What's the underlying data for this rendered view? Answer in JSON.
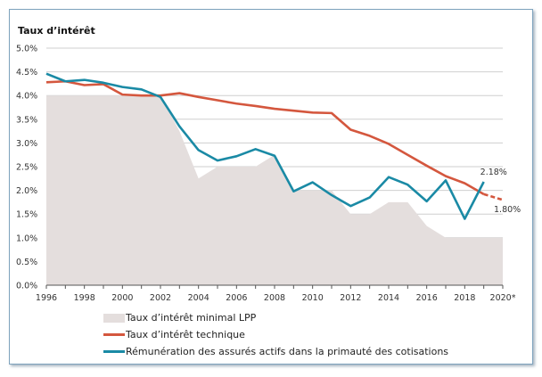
{
  "chart_data": {
    "type": "line",
    "title": "Taux d’intérêt",
    "xlabel": "",
    "ylabel": "",
    "x": [
      1996,
      1997,
      1998,
      1999,
      2000,
      2001,
      2002,
      2003,
      2004,
      2005,
      2006,
      2007,
      2008,
      2009,
      2010,
      2011,
      2012,
      2013,
      2014,
      2015,
      2016,
      2017,
      2018,
      2019,
      2020
    ],
    "x_ticks": [
      "1996",
      "1998",
      "2000",
      "2002",
      "2004",
      "2006",
      "2008",
      "2010",
      "2012",
      "2014",
      "2016",
      "2018",
      "2020*"
    ],
    "y_ticks": [
      "0.0%",
      "0.5%",
      "1.0%",
      "1.5%",
      "2.0%",
      "2.5%",
      "3.0%",
      "3.5%",
      "4.0%",
      "4.5%",
      "5.0%"
    ],
    "xlim": [
      1996,
      2020
    ],
    "ylim": [
      0,
      5
    ],
    "grid": true,
    "legend_position": "bottom",
    "series": [
      {
        "name": "Taux d’intérêt minimal LPP",
        "kind": "area",
        "color": "#e4dedd",
        "values": [
          4.0,
          4.0,
          4.0,
          4.0,
          4.0,
          4.0,
          4.0,
          3.25,
          2.25,
          2.5,
          2.5,
          2.5,
          2.75,
          2.0,
          2.0,
          2.0,
          1.5,
          1.5,
          1.75,
          1.75,
          1.25,
          1.0,
          1.0,
          1.0,
          1.0
        ]
      },
      {
        "name": "Taux d’intérêt technique",
        "kind": "line",
        "color": "#d4573e",
        "dashed_from": 2019,
        "values": [
          4.28,
          4.3,
          4.22,
          4.24,
          4.02,
          4.0,
          4.0,
          4.05,
          3.97,
          3.9,
          3.83,
          3.78,
          3.72,
          3.68,
          3.64,
          3.63,
          3.28,
          3.15,
          2.98,
          2.75,
          2.52,
          2.3,
          2.15,
          1.92,
          1.8
        ]
      },
      {
        "name": "Rémunération des assurés actifs dans la primauté des cotisations",
        "kind": "line",
        "color": "#1a8aa5",
        "values": [
          4.46,
          4.3,
          4.33,
          4.27,
          4.18,
          4.13,
          3.97,
          3.35,
          2.85,
          2.63,
          2.72,
          2.87,
          2.73,
          1.98,
          2.17,
          1.9,
          1.67,
          1.85,
          2.28,
          2.12,
          1.77,
          2.21,
          1.4,
          2.18,
          null
        ]
      }
    ],
    "annotations": [
      {
        "text": "2.18%",
        "x": 2019,
        "y": 2.18
      },
      {
        "text": "1.80%",
        "x": 2020,
        "y": 1.8
      }
    ]
  }
}
